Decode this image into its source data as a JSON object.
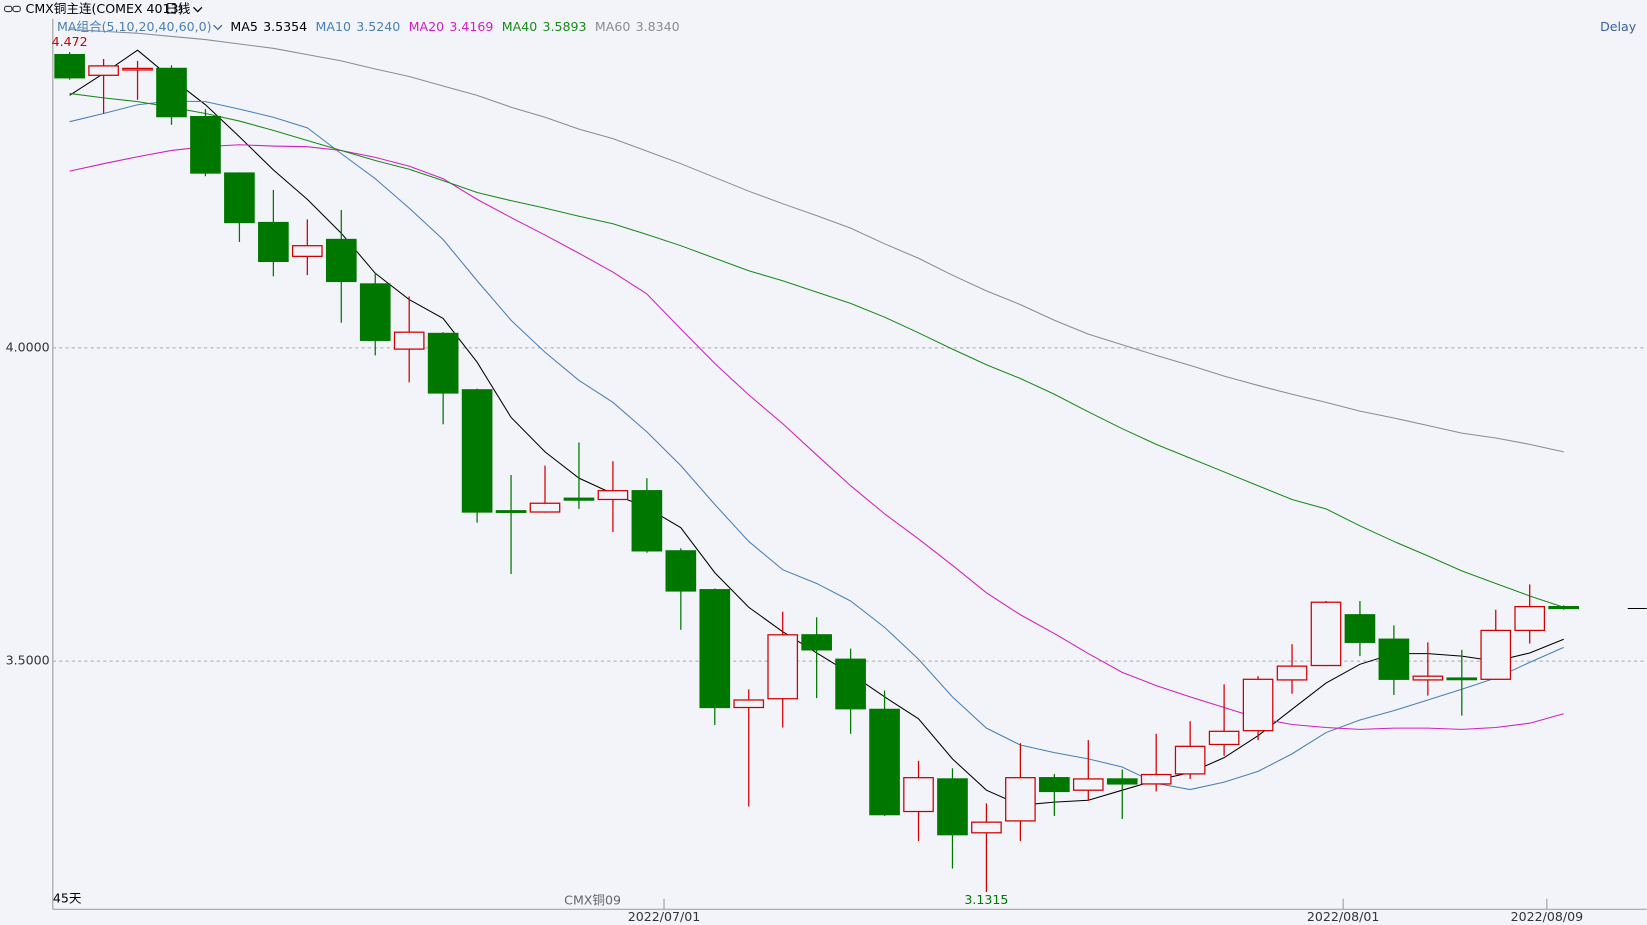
{
  "chart_data": {
    "type": "candlestick",
    "title": "CMX铜主连(COMEX 4013)",
    "period": "日线",
    "status": "Delay",
    "footer_left": "45天",
    "footer_contract": "CMX铜09",
    "ma_group_label": "MA组合(5,10,20,40,60,0)",
    "categories": [
      null,
      null,
      null,
      null,
      null,
      null,
      null,
      null,
      null,
      null,
      null,
      null,
      null,
      null,
      null,
      null,
      null,
      null,
      "2022/07/01",
      null,
      null,
      null,
      null,
      null,
      null,
      null,
      null,
      null,
      null,
      null,
      null,
      null,
      null,
      null,
      null,
      null,
      null,
      null,
      "2022/08/01",
      null,
      null,
      null,
      null,
      null,
      "2022/08/09"
    ],
    "open": [
      4.468,
      4.435,
      4.446,
      4.446,
      4.369,
      4.279,
      4.2,
      4.146,
      4.173,
      4.102,
      3.998,
      4.023,
      3.933,
      3.74,
      3.738,
      3.76,
      3.758,
      3.772,
      3.676,
      3.614,
      3.426,
      3.44,
      3.542,
      3.503,
      3.423,
      3.26,
      3.312,
      3.226,
      3.245,
      3.314,
      3.294,
      3.312,
      3.304,
      3.32,
      3.367,
      3.389,
      3.47,
      3.493,
      3.574,
      3.535,
      3.47,
      3.473,
      3.471,
      3.549,
      3.587
    ],
    "high": [
      4.472,
      4.461,
      4.458,
      4.451,
      4.381,
      4.28,
      4.252,
      4.205,
      4.22,
      4.119,
      4.082,
      4.025,
      3.935,
      3.797,
      3.812,
      3.849,
      3.819,
      3.792,
      3.68,
      3.616,
      3.455,
      3.579,
      3.57,
      3.52,
      3.453,
      3.341,
      3.329,
      3.273,
      3.369,
      3.32,
      3.374,
      3.327,
      3.384,
      3.404,
      3.463,
      3.476,
      3.527,
      3.596,
      3.596,
      3.557,
      3.53,
      3.518,
      3.582,
      3.6225,
      3.589
    ],
    "low": [
      4.428,
      4.374,
      4.396,
      4.356,
      4.274,
      4.169,
      4.114,
      4.116,
      4.04,
      3.988,
      3.945,
      3.878,
      3.721,
      3.639,
      3.737,
      3.743,
      3.706,
      3.673,
      3.55,
      3.398,
      3.268,
      3.394,
      3.441,
      3.384,
      3.253,
      3.213,
      3.169,
      3.1315,
      3.213,
      3.253,
      3.277,
      3.248,
      3.292,
      3.312,
      3.349,
      3.374,
      3.448,
      3.492,
      3.508,
      3.446,
      3.445,
      3.413,
      3.47,
      3.528,
      3.582
    ],
    "close": [
      4.431,
      4.45,
      4.446,
      4.369,
      4.279,
      4.2,
      4.138,
      4.163,
      4.106,
      4.012,
      4.025,
      3.928,
      3.738,
      3.738,
      3.752,
      3.757,
      3.772,
      3.676,
      3.612,
      3.426,
      3.438,
      3.542,
      3.518,
      3.424,
      3.255,
      3.314,
      3.223,
      3.243,
      3.314,
      3.292,
      3.312,
      3.304,
      3.319,
      3.364,
      3.388,
      3.471,
      3.492,
      3.594,
      3.53,
      3.471,
      3.476,
      3.471,
      3.549,
      3.587,
      3.584
    ],
    "up_color": "#d00000",
    "down_color": "#007800",
    "ylim": [
      3.104,
      4.525
    ],
    "yticks": [
      {
        "value": 4,
        "label": "4.0000"
      },
      {
        "value": 3.5,
        "label": "3.5000"
      }
    ],
    "grid": true,
    "series": [
      {
        "name": "MA5",
        "color": "#000000",
        "legend_value": {
          "value": 3.5354,
          "label": "3.5354"
        },
        "values": [
          4.403,
          4.438,
          4.475,
          4.43,
          4.388,
          4.337,
          4.284,
          4.237,
          4.183,
          4.119,
          4.077,
          4.047,
          3.977,
          3.889,
          3.834,
          3.792,
          3.767,
          3.745,
          3.713,
          3.641,
          3.586,
          3.547,
          3.513,
          3.48,
          3.443,
          3.408,
          3.344,
          3.294,
          3.27,
          3.275,
          3.278,
          3.294,
          3.31,
          3.322,
          3.346,
          3.381,
          3.423,
          3.465,
          3.495,
          3.512,
          3.512,
          3.508,
          3.5,
          3.513,
          3.535
        ]
      },
      {
        "name": "MA10",
        "color": "#4a7fb8",
        "legend_value": {
          "value": 3.524,
          "label": "3.5240"
        },
        "values": [
          4.361,
          4.374,
          4.388,
          4.394,
          4.393,
          4.381,
          4.368,
          4.351,
          4.31,
          4.27,
          4.223,
          4.173,
          4.107,
          4.044,
          3.993,
          3.948,
          3.913,
          3.866,
          3.812,
          3.75,
          3.691,
          3.646,
          3.624,
          3.596,
          3.554,
          3.503,
          3.443,
          3.393,
          3.366,
          3.354,
          3.344,
          3.331,
          3.305,
          3.295,
          3.307,
          3.324,
          3.352,
          3.386,
          3.406,
          3.421,
          3.438,
          3.455,
          3.473,
          3.498,
          3.522
        ]
      },
      {
        "name": "MA20",
        "color": "#d020c0",
        "legend_value": {
          "value": 3.4169,
          "label": "3.4169"
        },
        "values": [
          4.282,
          4.294,
          4.305,
          4.315,
          4.321,
          4.324,
          4.322,
          4.321,
          4.315,
          4.304,
          4.29,
          4.27,
          4.237,
          4.208,
          4.18,
          4.151,
          4.121,
          4.086,
          4.03,
          3.975,
          3.925,
          3.879,
          3.829,
          3.78,
          3.735,
          3.695,
          3.653,
          3.609,
          3.574,
          3.544,
          3.512,
          3.482,
          3.461,
          3.443,
          3.426,
          3.409,
          3.399,
          3.394,
          3.391,
          3.393,
          3.393,
          3.391,
          3.394,
          3.401,
          3.416
        ]
      },
      {
        "name": "MA40",
        "color": "#1a8a1a",
        "legend_value": {
          "value": 3.5893,
          "label": "3.5893"
        },
        "values": [
          4.406,
          4.399,
          4.393,
          4.384,
          4.374,
          4.362,
          4.347,
          4.331,
          4.315,
          4.299,
          4.285,
          4.267,
          4.248,
          4.235,
          4.223,
          4.21,
          4.198,
          4.181,
          4.163,
          4.143,
          4.123,
          4.107,
          4.089,
          4.071,
          4.049,
          4.024,
          3.998,
          3.973,
          3.951,
          3.926,
          3.898,
          3.871,
          3.846,
          3.824,
          3.802,
          3.78,
          3.758,
          3.743,
          3.716,
          3.691,
          3.668,
          3.644,
          3.624,
          3.604,
          3.586
        ]
      },
      {
        "name": "MA60",
        "color": "#8c8c8c",
        "legend_value": {
          "value": 3.834,
          "label": "3.8340"
        },
        "values": [
          4.508,
          4.505,
          4.502,
          4.497,
          4.492,
          4.485,
          4.478,
          4.468,
          4.458,
          4.445,
          4.433,
          4.418,
          4.403,
          4.384,
          4.368,
          4.349,
          4.334,
          4.314,
          4.294,
          4.272,
          4.25,
          4.23,
          4.211,
          4.191,
          4.166,
          4.143,
          4.116,
          4.091,
          4.069,
          4.044,
          4.022,
          4.005,
          3.988,
          3.972,
          3.955,
          3.94,
          3.926,
          3.913,
          3.899,
          3.888,
          3.876,
          3.864,
          3.856,
          3.846,
          3.834
        ]
      }
    ]
  }
}
